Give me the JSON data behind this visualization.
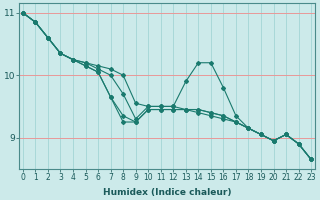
{
  "xlabel": "Humidex (Indice chaleur)",
  "bg_color": "#cceaea",
  "line_color": "#1a7a6e",
  "grid_color_h": "#e89898",
  "grid_color_v": "#a8d8d8",
  "series": [
    [
      11.0,
      10.85,
      10.6,
      10.35,
      10.25,
      10.2,
      10.15,
      10.1,
      10.0,
      9.55,
      9.5,
      9.5,
      9.5,
      9.45,
      9.4,
      9.35,
      9.3,
      9.25,
      9.15,
      9.05,
      8.95,
      9.05,
      8.9,
      8.65
    ],
    [
      11.0,
      10.85,
      10.6,
      10.35,
      10.25,
      10.2,
      10.1,
      10.0,
      9.7,
      9.3,
      9.5,
      9.5,
      9.5,
      9.9,
      10.2,
      10.2,
      9.8,
      9.35,
      9.15,
      9.05,
      8.95,
      9.05,
      8.9,
      8.65
    ],
    [
      11.0,
      10.85,
      10.6,
      10.35,
      10.25,
      10.15,
      10.05,
      9.65,
      9.35,
      9.25,
      9.45,
      9.45,
      9.45,
      9.45,
      9.45,
      9.4,
      9.35,
      9.25,
      9.15,
      9.05,
      8.95,
      9.05,
      8.9,
      8.65
    ],
    [
      11.0,
      10.85,
      10.6,
      10.35,
      10.25,
      10.15,
      10.05,
      9.65,
      9.25,
      9.25,
      9.45,
      9.45,
      9.45,
      9.45,
      9.45,
      9.4,
      9.35,
      9.25,
      9.15,
      9.05,
      8.95,
      9.05,
      8.9,
      8.65
    ]
  ],
  "ylim": [
    8.5,
    11.15
  ],
  "xlim": [
    -0.3,
    23.3
  ],
  "yticks": [
    9,
    10,
    11
  ],
  "xticks": [
    0,
    1,
    2,
    3,
    4,
    5,
    6,
    7,
    8,
    9,
    10,
    11,
    12,
    13,
    14,
    15,
    16,
    17,
    18,
    19,
    20,
    21,
    22,
    23
  ],
  "xlabel_fontsize": 6.5,
  "xlabel_fontweight": "bold",
  "tick_fontsize": 5.5,
  "ytick_fontsize": 6.5
}
